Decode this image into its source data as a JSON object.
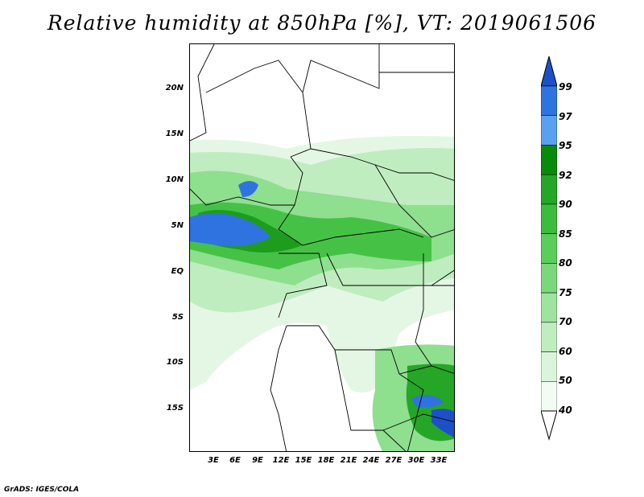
{
  "title": "Relative humidity at 850hPa [%], VT: 2019061506",
  "credit": "GrADS: IGES/COLA",
  "lat_labels": [
    "20N",
    "15N",
    "10N",
    "5N",
    "EQ",
    "5S",
    "10S",
    "15S"
  ],
  "lon_labels": [
    "3E",
    "6E",
    "9E",
    "12E",
    "15E",
    "18E",
    "21E",
    "24E",
    "27E",
    "30E",
    "33E"
  ],
  "colorbar": {
    "levels": [
      "99",
      "97",
      "95",
      "92",
      "90",
      "85",
      "80",
      "75",
      "70",
      "60",
      "50",
      "40"
    ],
    "colors": [
      "#1d50c8",
      "#2f73e0",
      "#5aa0f0",
      "#0a8a0a",
      "#26a626",
      "#3dbb3d",
      "#5acd5a",
      "#7ad87a",
      "#9ee39e",
      "#bfedbf",
      "#daf5da",
      "#f2fcf2"
    ]
  },
  "land_color": "#ffffff",
  "border_color": "#000000"
}
